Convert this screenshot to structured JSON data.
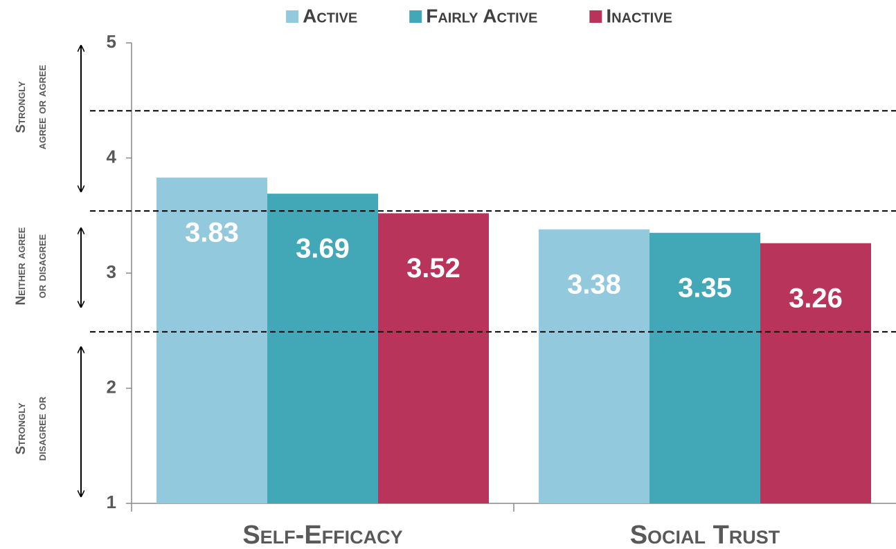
{
  "chart_data": {
    "type": "bar",
    "categories": [
      "Self-Efficacy",
      "Social Trust"
    ],
    "series": [
      {
        "name": "Active",
        "color": "#92c9dc",
        "values": [
          3.83,
          3.38
        ]
      },
      {
        "name": "Fairly Active",
        "color": "#42a7b6",
        "values": [
          3.69,
          3.35
        ]
      },
      {
        "name": "Inactive",
        "color": "#b8345a",
        "values": [
          3.52,
          3.26
        ]
      }
    ],
    "ylim": [
      1,
      5
    ],
    "yticks": [
      1,
      2,
      3,
      4,
      5
    ],
    "reference_lines": [
      4.41,
      3.54,
      2.49
    ],
    "annotations": [
      [
        "Strongly",
        "agree or agree"
      ],
      [
        "Neither agree",
        "or disagree"
      ],
      [
        "Strongly",
        "disagree or"
      ]
    ],
    "legend": "top"
  }
}
